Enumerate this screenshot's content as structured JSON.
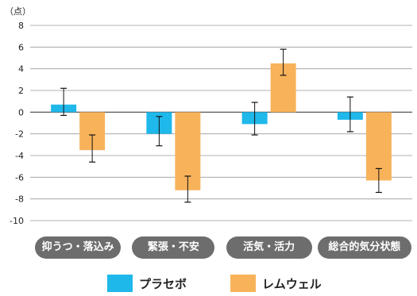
{
  "unit_label": "（点）",
  "chart_data": {
    "type": "bar",
    "categories": [
      "抑うつ・落込み",
      "緊張・不安",
      "活気・活力",
      "総合的気分状態"
    ],
    "series": [
      {
        "name": "プラセボ",
        "color": "#1fb8ea",
        "values": [
          0.7,
          -2.0,
          -1.1,
          -0.7
        ],
        "err_high": [
          2.2,
          -0.4,
          0.9,
          1.4
        ],
        "err_low": [
          -0.3,
          -3.1,
          -2.1,
          -1.8
        ]
      },
      {
        "name": "レムウェル",
        "color": "#f8b35a",
        "values": [
          -3.5,
          -7.2,
          4.5,
          -6.3
        ],
        "err_high": [
          -2.1,
          -5.9,
          5.8,
          -5.2
        ],
        "err_low": [
          -4.6,
          -8.3,
          3.4,
          -7.4
        ]
      }
    ],
    "ylim": [
      -10,
      8
    ],
    "yticks": [
      "8",
      "6",
      "4",
      "2",
      "0",
      "-2",
      "-4",
      "-6",
      "-8",
      "-10"
    ],
    "grid": true,
    "legend_position": "bottom"
  }
}
